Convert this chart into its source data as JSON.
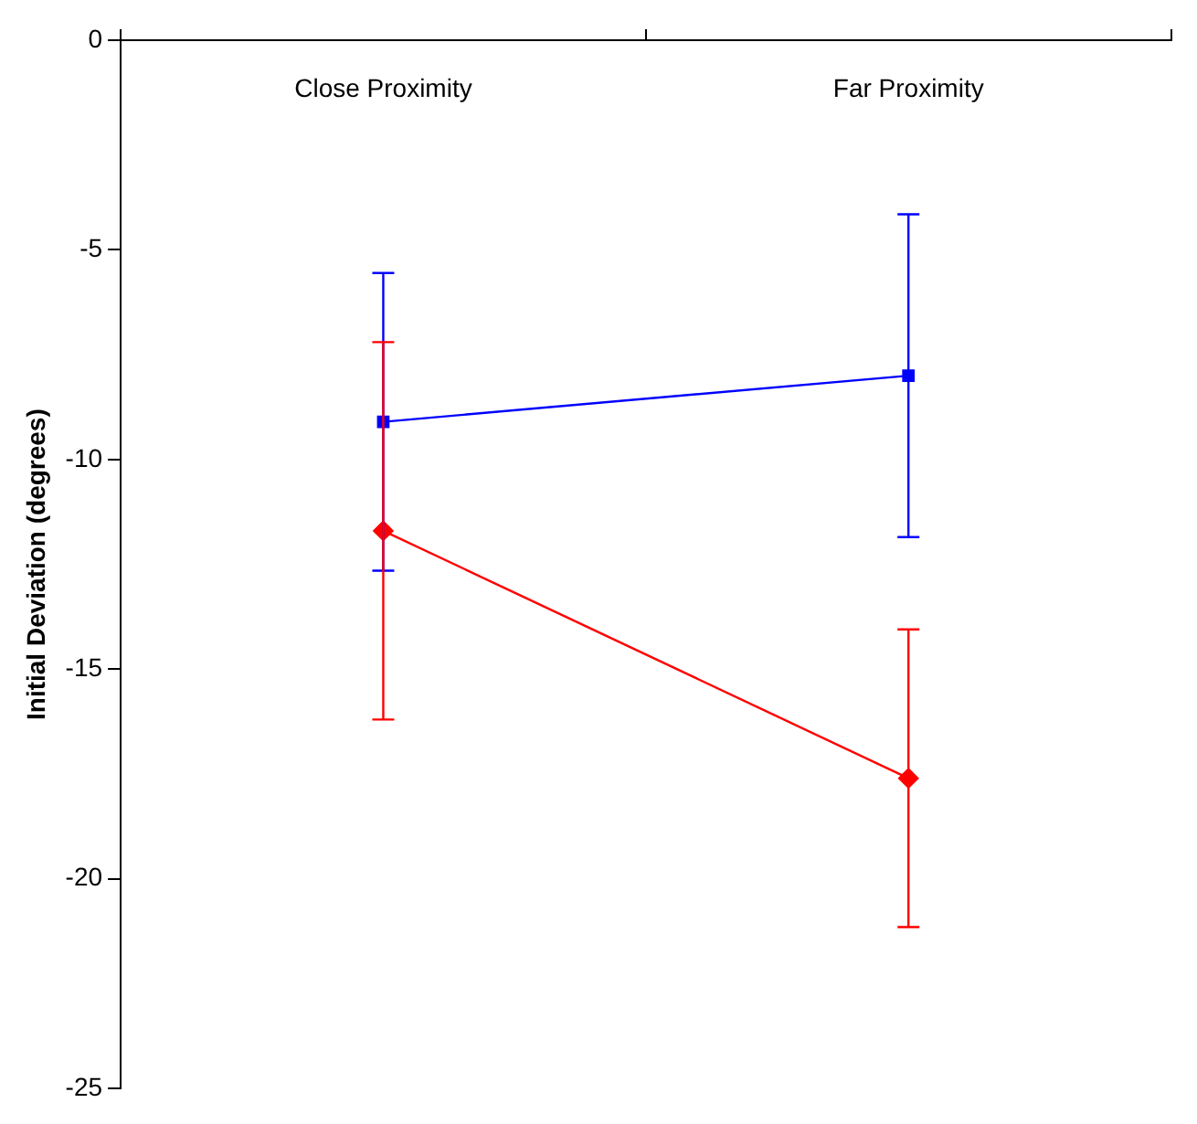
{
  "chart_data": {
    "type": "line",
    "ylabel": "Initial Deviation (degrees)",
    "categories": [
      "Close Proximity",
      "Far Proximity"
    ],
    "series": [
      {
        "color": "#0000ff",
        "marker": "square",
        "values": [
          -9.1,
          -8.0
        ],
        "errors": [
          3.55,
          3.85
        ]
      },
      {
        "color": "#ff0000",
        "marker": "diamond",
        "values": [
          -11.7,
          -17.6
        ],
        "errors": [
          4.5,
          3.55
        ]
      }
    ],
    "ylim": [
      -25,
      0
    ],
    "yticks": [
      -25,
      -20,
      -15,
      -10,
      -5,
      0
    ],
    "grid": false,
    "legend": false,
    "line_style": "solid"
  }
}
